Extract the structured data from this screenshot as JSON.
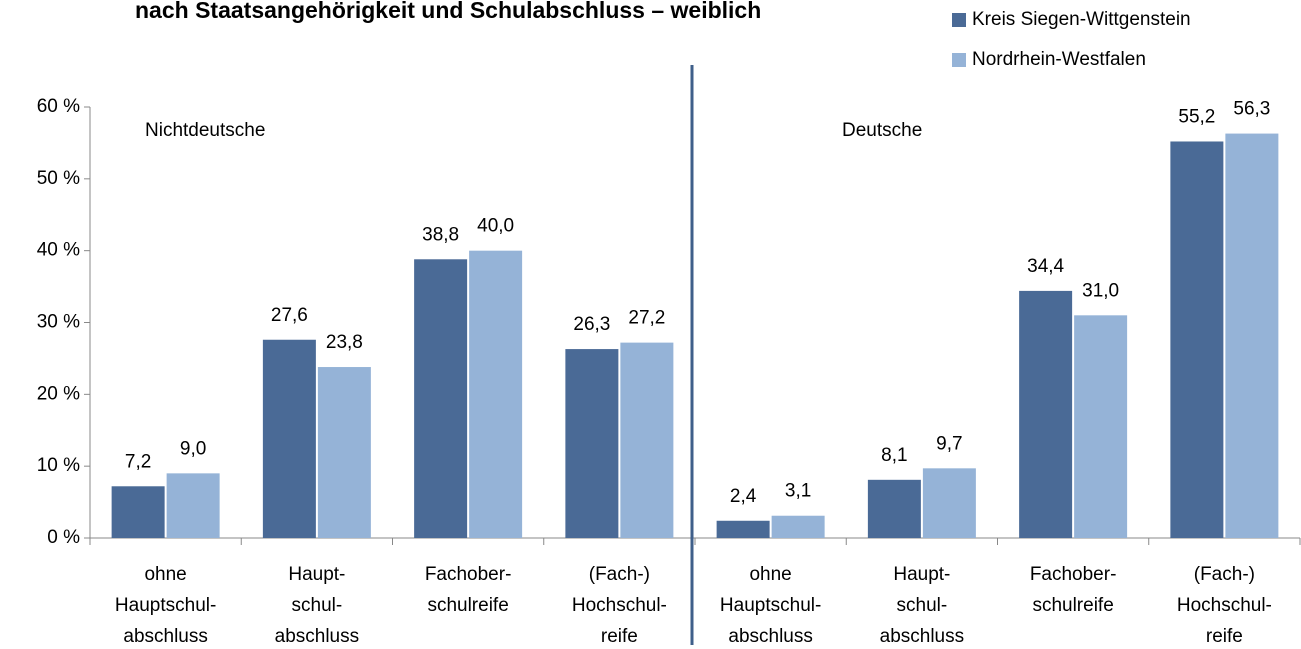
{
  "chart_data": {
    "type": "bar",
    "title": "nach Staatsangehörigkeit und Schulabschluss – weiblich",
    "annotations": [
      "Nichtdeutsche",
      "Deutsche"
    ],
    "categories": [
      [
        "ohne",
        "Hauptschul-",
        "abschluss"
      ],
      [
        "Haupt-",
        "schul-",
        "abschluss"
      ],
      [
        "Fachober-",
        "schulreife"
      ],
      [
        "(Fach-)",
        "Hochschul-",
        "reife"
      ],
      [
        "ohne",
        "Hauptschul-",
        "abschluss"
      ],
      [
        "Haupt-",
        "schul-",
        "abschluss"
      ],
      [
        "Fachober-",
        "schulreife"
      ],
      [
        "(Fach-)",
        "Hochschul-",
        "reife"
      ]
    ],
    "series": [
      {
        "name": "Kreis Siegen-Wittgenstein",
        "color": "#4a6a96",
        "values": [
          7.2,
          27.6,
          38.8,
          26.3,
          2.4,
          8.1,
          34.4,
          55.2
        ],
        "value_labels": [
          "7,2",
          "27,6",
          "38,8",
          "26,3",
          "2,4",
          "8,1",
          "34,4",
          "55,2"
        ]
      },
      {
        "name": "Nordrhein-Westfalen",
        "color": "#95b3d7",
        "values": [
          9.0,
          23.8,
          40.0,
          27.2,
          3.1,
          9.7,
          31.0,
          56.3
        ],
        "value_labels": [
          "9,0",
          "23,8",
          "40,0",
          "27,2",
          "3,1",
          "9,7",
          "31,0",
          "56,3"
        ]
      }
    ],
    "ylim": [
      0,
      60
    ],
    "yticks": [
      {
        "value": 0,
        "label": "0 %"
      },
      {
        "value": 10,
        "label": "10 %"
      },
      {
        "value": 20,
        "label": "20 %"
      },
      {
        "value": 30,
        "label": "30 %"
      },
      {
        "value": 40,
        "label": "40 %"
      },
      {
        "value": 50,
        "label": "50 %"
      },
      {
        "value": 60,
        "label": "60 %"
      }
    ],
    "legend": "top-right"
  }
}
